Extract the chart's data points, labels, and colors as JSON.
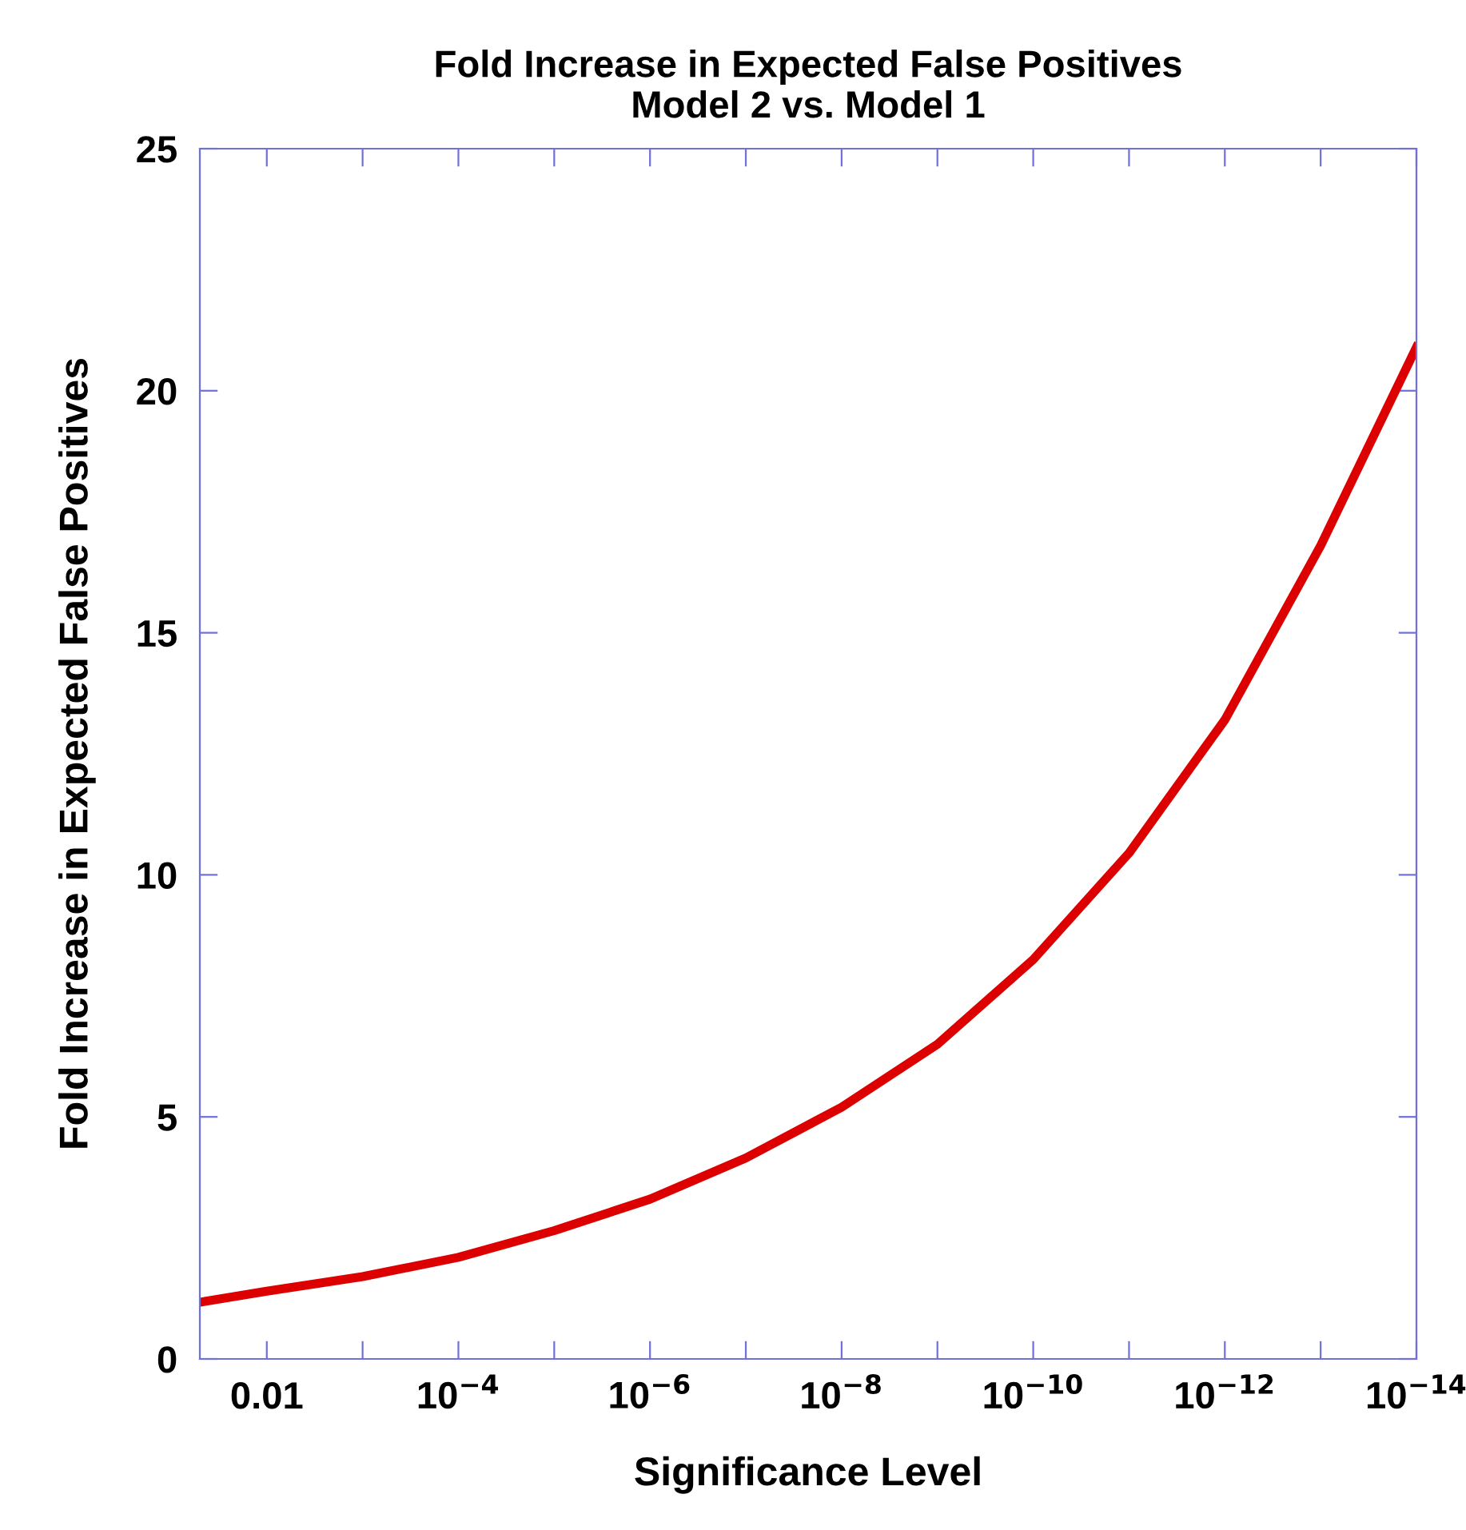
{
  "chart_data": {
    "type": "line",
    "title": "Fold Increase in Expected False Positives\nModel 2 vs. Model 1",
    "xlabel": "Significance Level",
    "ylabel": "Fold Increase in Expected False Positives",
    "log": "x",
    "x": [
      0.05,
      0.01,
      0.001,
      0.0001,
      1e-05,
      1e-06,
      1e-07,
      1e-08,
      1e-09,
      1e-10,
      1e-11,
      1e-12,
      1e-13,
      1e-14
    ],
    "series": [
      {
        "color": "#dd0000",
        "values": [
          1.17,
          1.4,
          1.7,
          2.1,
          2.65,
          3.3,
          4.15,
          5.2,
          6.5,
          8.25,
          10.45,
          13.2,
          16.8,
          20.9
        ]
      }
    ],
    "xlim": [
      0.05,
      1e-14
    ],
    "xticks": [
      {
        "value": 0.01,
        "label": "0.01"
      },
      {
        "value": 0.001,
        "label": null
      },
      {
        "value": 0.0001,
        "label": "10$^{−4}$"
      },
      {
        "value": 1e-05,
        "label": null
      },
      {
        "value": 1e-06,
        "label": "10$^{−6}$"
      },
      {
        "value": 1e-07,
        "label": null
      },
      {
        "value": 1e-08,
        "label": "10$^{−8}$"
      },
      {
        "value": 1e-09,
        "label": null
      },
      {
        "value": 1e-10,
        "label": "10$^{−10}$"
      },
      {
        "value": 1e-11,
        "label": null
      },
      {
        "value": 1e-12,
        "label": "10$^{−12}$"
      },
      {
        "value": 1e-13,
        "label": null
      },
      {
        "value": 1e-14,
        "label": "10$^{−14}$"
      }
    ],
    "ylim": [
      0,
      25
    ],
    "yticks": [
      0,
      5,
      10,
      15,
      20,
      25
    ],
    "grid": false,
    "legend": false,
    "marker": "none",
    "line_style": "solid"
  }
}
